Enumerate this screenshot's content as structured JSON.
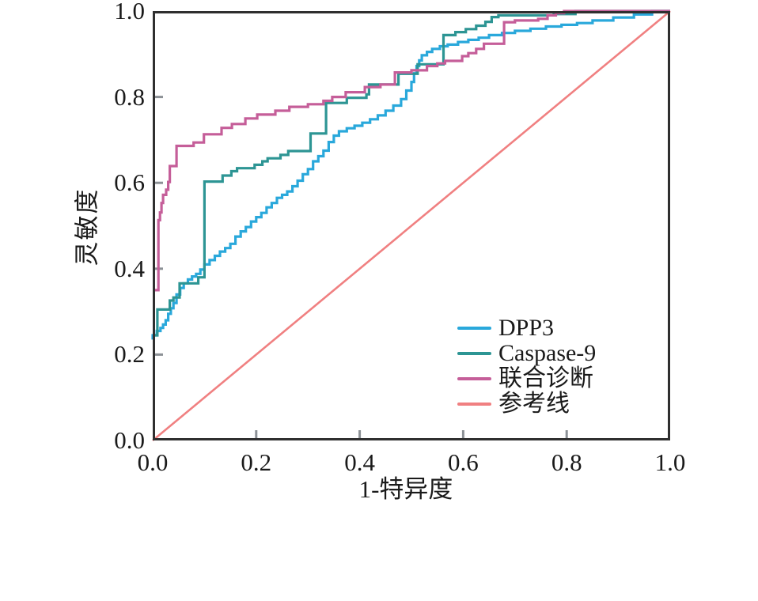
{
  "chart_data": {
    "type": "line",
    "subtype": "roc-curves",
    "title": "",
    "xlabel": "1-特异度",
    "ylabel": "灵敏度",
    "xlim": [
      0,
      1
    ],
    "ylim": [
      0,
      1
    ],
    "grid": false,
    "legend_position": "inside-lower-right",
    "axis_color": "#2f2f2f",
    "tick_color": "#8c9196",
    "x_ticks": [
      0,
      0.2,
      0.4,
      0.6,
      0.8,
      1
    ],
    "x_tick_labels": [
      "0.0",
      "0.2",
      "0.4",
      "0.6",
      "0.8",
      "1.0"
    ],
    "y_ticks": [
      0,
      0.2,
      0.4,
      0.6,
      0.8,
      1
    ],
    "y_tick_labels": [
      "0.0",
      "0.2",
      "0.4",
      "0.6",
      "0.8",
      "1.0"
    ],
    "series": [
      {
        "name": "DPP3",
        "color": "#29a8db",
        "style": "step",
        "width": 3.2,
        "points": [
          [
            0,
            0.235
          ],
          [
            0.008,
            0.245
          ],
          [
            0.015,
            0.255
          ],
          [
            0.02,
            0.262
          ],
          [
            0.025,
            0.27
          ],
          [
            0.03,
            0.28
          ],
          [
            0.035,
            0.295
          ],
          [
            0.04,
            0.308
          ],
          [
            0.046,
            0.32
          ],
          [
            0.053,
            0.34
          ],
          [
            0.06,
            0.355
          ],
          [
            0.068,
            0.366
          ],
          [
            0.076,
            0.375
          ],
          [
            0.084,
            0.382
          ],
          [
            0.092,
            0.388
          ],
          [
            0.1,
            0.398
          ],
          [
            0.11,
            0.41
          ],
          [
            0.12,
            0.42
          ],
          [
            0.13,
            0.43
          ],
          [
            0.14,
            0.44
          ],
          [
            0.15,
            0.448
          ],
          [
            0.16,
            0.458
          ],
          [
            0.17,
            0.475
          ],
          [
            0.18,
            0.487
          ],
          [
            0.19,
            0.497
          ],
          [
            0.2,
            0.51
          ],
          [
            0.21,
            0.52
          ],
          [
            0.22,
            0.53
          ],
          [
            0.23,
            0.543
          ],
          [
            0.24,
            0.553
          ],
          [
            0.25,
            0.565
          ],
          [
            0.26,
            0.572
          ],
          [
            0.27,
            0.58
          ],
          [
            0.28,
            0.592
          ],
          [
            0.29,
            0.605
          ],
          [
            0.3,
            0.62
          ],
          [
            0.31,
            0.632
          ],
          [
            0.32,
            0.65
          ],
          [
            0.33,
            0.662
          ],
          [
            0.34,
            0.675
          ],
          [
            0.35,
            0.695
          ],
          [
            0.36,
            0.71
          ],
          [
            0.375,
            0.72
          ],
          [
            0.39,
            0.727
          ],
          [
            0.405,
            0.733
          ],
          [
            0.42,
            0.74
          ],
          [
            0.435,
            0.748
          ],
          [
            0.45,
            0.757
          ],
          [
            0.465,
            0.768
          ],
          [
            0.48,
            0.78
          ],
          [
            0.49,
            0.795
          ],
          [
            0.5,
            0.815
          ],
          [
            0.505,
            0.835
          ],
          [
            0.51,
            0.855
          ],
          [
            0.515,
            0.872
          ],
          [
            0.52,
            0.885
          ],
          [
            0.53,
            0.897
          ],
          [
            0.54,
            0.905
          ],
          [
            0.555,
            0.912
          ],
          [
            0.57,
            0.918
          ],
          [
            0.59,
            0.922
          ],
          [
            0.61,
            0.928
          ],
          [
            0.63,
            0.933
          ],
          [
            0.65,
            0.938
          ],
          [
            0.675,
            0.944
          ],
          [
            0.7,
            0.949
          ],
          [
            0.73,
            0.954
          ],
          [
            0.76,
            0.959
          ],
          [
            0.79,
            0.964
          ],
          [
            0.82,
            0.968
          ],
          [
            0.85,
            0.972
          ],
          [
            0.89,
            0.978
          ],
          [
            0.93,
            0.985
          ],
          [
            0.965,
            0.992
          ],
          [
            1,
            1
          ]
        ]
      },
      {
        "name": "Caspase-9",
        "color": "#2d9594",
        "style": "step",
        "width": 3.2,
        "points": [
          [
            0,
            0.245
          ],
          [
            0.009,
            0.245
          ],
          [
            0.033,
            0.305
          ],
          [
            0.04,
            0.326
          ],
          [
            0.052,
            0.333
          ],
          [
            0.088,
            0.366
          ],
          [
            0.1,
            0.38
          ],
          [
            0.135,
            0.603
          ],
          [
            0.152,
            0.617
          ],
          [
            0.163,
            0.627
          ],
          [
            0.197,
            0.634
          ],
          [
            0.212,
            0.642
          ],
          [
            0.222,
            0.65
          ],
          [
            0.247,
            0.657
          ],
          [
            0.262,
            0.665
          ],
          [
            0.305,
            0.674
          ],
          [
            0.335,
            0.715
          ],
          [
            0.375,
            0.786
          ],
          [
            0.413,
            0.798
          ],
          [
            0.418,
            0.806
          ],
          [
            0.475,
            0.829
          ],
          [
            0.512,
            0.854
          ],
          [
            0.562,
            0.876
          ],
          [
            0.585,
            0.944
          ],
          [
            0.605,
            0.951
          ],
          [
            0.625,
            0.958
          ],
          [
            0.643,
            0.966
          ],
          [
            0.655,
            0.975
          ],
          [
            0.668,
            0.986
          ],
          [
            0.775,
            0.99
          ],
          [
            0.817,
            0.993
          ],
          [
            1,
            1
          ]
        ]
      },
      {
        "name": "联合诊断",
        "color": "#c55e99",
        "style": "step",
        "width": 3.2,
        "points": [
          [
            0,
            0.35
          ],
          [
            0.011,
            0.35
          ],
          [
            0.014,
            0.513
          ],
          [
            0.017,
            0.531
          ],
          [
            0.02,
            0.553
          ],
          [
            0.026,
            0.572
          ],
          [
            0.03,
            0.584
          ],
          [
            0.033,
            0.602
          ],
          [
            0.046,
            0.639
          ],
          [
            0.079,
            0.686
          ],
          [
            0.099,
            0.694
          ],
          [
            0.133,
            0.713
          ],
          [
            0.153,
            0.728
          ],
          [
            0.179,
            0.737
          ],
          [
            0.202,
            0.75
          ],
          [
            0.237,
            0.759
          ],
          [
            0.264,
            0.768
          ],
          [
            0.3,
            0.777
          ],
          [
            0.33,
            0.783
          ],
          [
            0.347,
            0.791
          ],
          [
            0.373,
            0.8
          ],
          [
            0.41,
            0.811
          ],
          [
            0.44,
            0.823
          ],
          [
            0.468,
            0.829
          ],
          [
            0.5,
            0.857
          ],
          [
            0.53,
            0.862
          ],
          [
            0.55,
            0.872
          ],
          [
            0.565,
            0.878
          ],
          [
            0.598,
            0.884
          ],
          [
            0.61,
            0.895
          ],
          [
            0.625,
            0.902
          ],
          [
            0.64,
            0.912
          ],
          [
            0.679,
            0.924
          ],
          [
            0.7,
            0.974
          ],
          [
            0.745,
            0.978
          ],
          [
            0.763,
            0.982
          ],
          [
            0.779,
            0.99
          ],
          [
            0.795,
            0.995
          ],
          [
            1,
            1
          ]
        ]
      },
      {
        "name": "参考线",
        "color": "#f08081",
        "style": "line",
        "width": 2.6,
        "points": [
          [
            0,
            0
          ],
          [
            1,
            1
          ]
        ]
      }
    ]
  }
}
